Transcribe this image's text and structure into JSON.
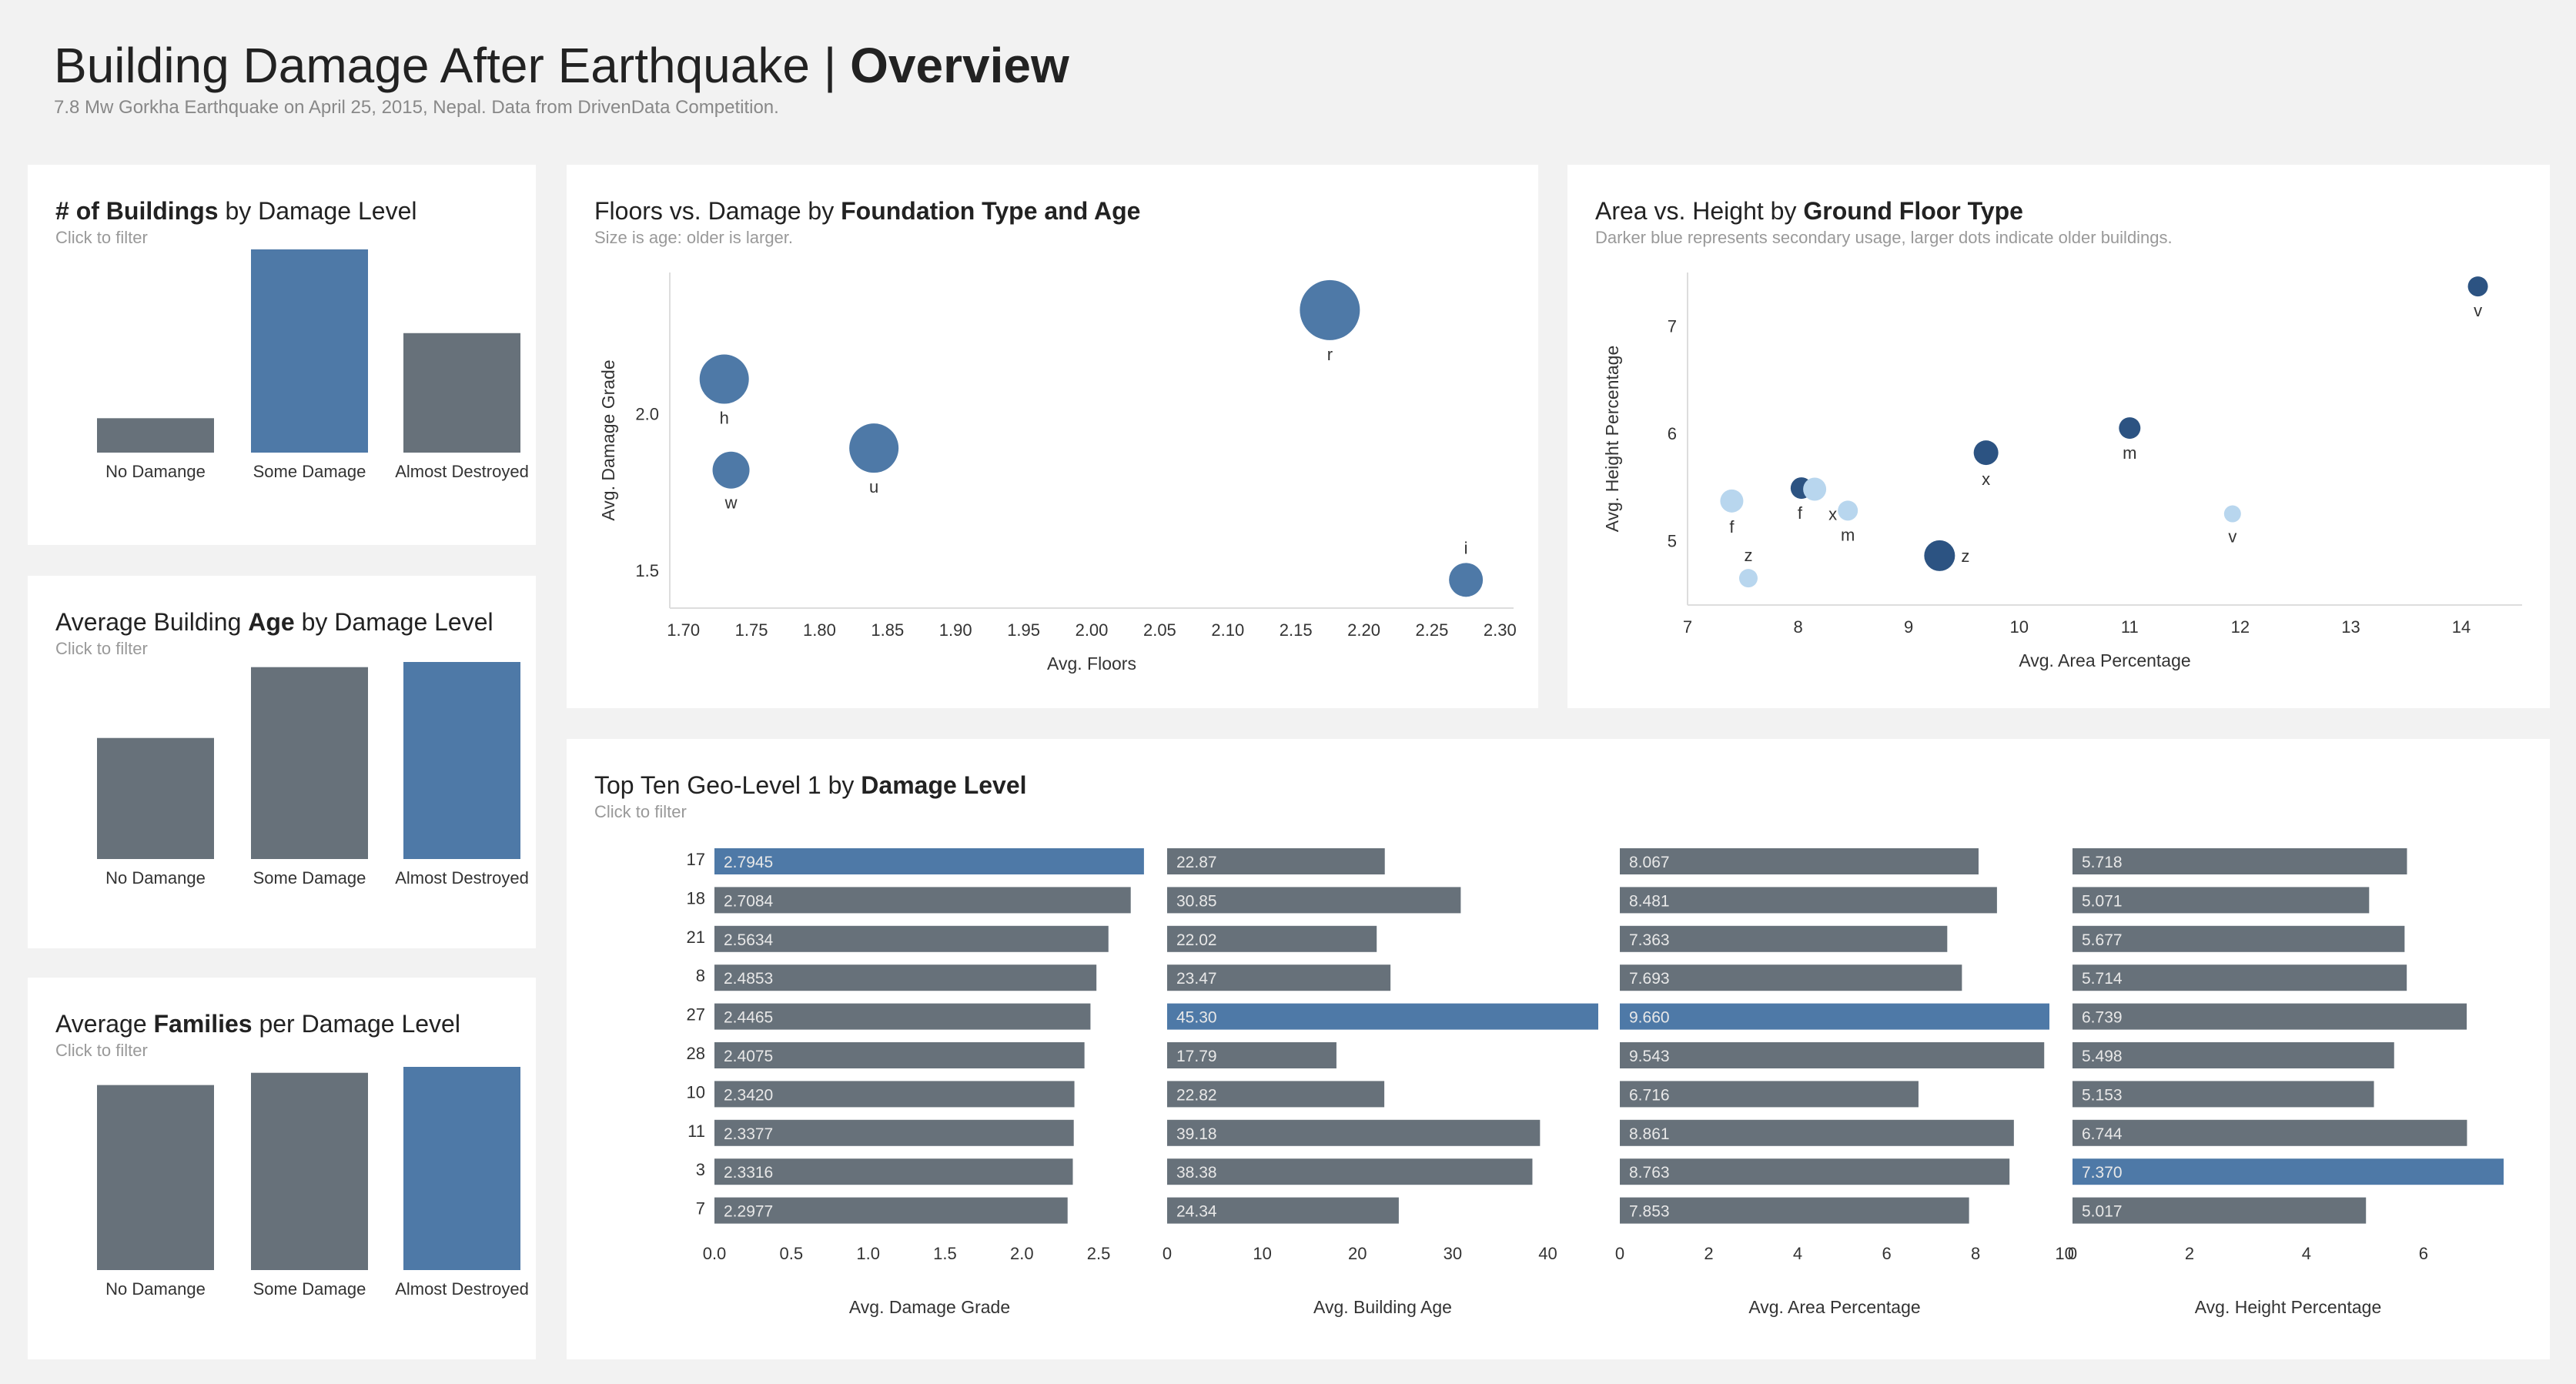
{
  "header": {
    "title_pre": "Building Damage After Earthquake | ",
    "title_bold": "Overview",
    "subtitle": "7.8 Mw Gorkha Earthquake on April 25, 2015, Nepal. Data from DrivenData Competition."
  },
  "colors": {
    "blue": "#4e79a7",
    "gray": "#67717a",
    "dark_blue": "#2c5382",
    "light_blue": "#b8d6ee",
    "axis": "#dddddd"
  },
  "panels": {
    "buildings": {
      "title_bold": "# of Buildings",
      "title_rest": " by Damage Level",
      "sub": "Click to filter"
    },
    "age": {
      "title_pre": "Average Building ",
      "title_bold": "Age",
      "title_rest": " by Damage Level",
      "sub": "Click to filter"
    },
    "families": {
      "title_pre": "Average ",
      "title_bold": "Families",
      "title_rest": " per Damage Level",
      "sub": "Click to filter"
    },
    "floors": {
      "title_pre": "Floors vs. Damage by ",
      "title_bold": "Foundation Type and Age",
      "sub": "Size is age: older is larger."
    },
    "area": {
      "title_pre": "Area vs. Height by ",
      "title_bold": "Ground Floor Type",
      "sub": "Darker blue represents secondary usage, larger dots indicate older buildings."
    },
    "geo": {
      "title_pre": "Top Ten Geo-Level 1 by ",
      "title_bold": "Damage Level",
      "sub": "Click to filter"
    }
  },
  "chart_data": [
    {
      "id": "buildings",
      "type": "bar",
      "categories": [
        "No Damange",
        "Some Damage",
        "Almost Destroyed"
      ],
      "values": [
        25100,
        148300,
        87200
      ],
      "highlight": 1
    },
    {
      "id": "age",
      "type": "bar",
      "categories": [
        "No Damange",
        "Some Damage",
        "Almost Destroyed"
      ],
      "values": [
        18.8,
        29.8,
        30.6
      ],
      "highlight": 2
    },
    {
      "id": "families",
      "type": "bar",
      "categories": [
        "No Damange",
        "Some Damage",
        "Almost Destroyed"
      ],
      "values": [
        0.936,
        0.998,
        1.028
      ],
      "highlight": 2
    },
    {
      "id": "floors",
      "type": "scatter",
      "xlabel": "Avg. Floors",
      "ylabel": "Avg. Damage Grade",
      "xlim": [
        1.69,
        2.31
      ],
      "ylim": [
        1.38,
        2.45
      ],
      "xticks": [
        "1.70",
        "1.75",
        "1.80",
        "1.85",
        "1.90",
        "1.95",
        "2.00",
        "2.05",
        "2.10",
        "2.15",
        "2.20",
        "2.25",
        "2.30"
      ],
      "yticks": [
        "1.5",
        "2.0"
      ],
      "points": [
        {
          "label": "h",
          "x": 1.73,
          "y": 2.11,
          "size": 32
        },
        {
          "label": "w",
          "x": 1.735,
          "y": 1.82,
          "size": 24
        },
        {
          "label": "u",
          "x": 1.84,
          "y": 1.89,
          "size": 32
        },
        {
          "label": "r",
          "x": 2.175,
          "y": 2.33,
          "size": 39
        },
        {
          "label": "i",
          "x": 2.275,
          "y": 1.47,
          "size": 22
        }
      ]
    },
    {
      "id": "area",
      "type": "scatter",
      "xlabel": "Avg. Area Percentage",
      "ylabel": "Avg. Height Percentage",
      "xlim": [
        7,
        14.55
      ],
      "ylim": [
        4.4,
        7.5
      ],
      "xticks": [
        "7",
        "8",
        "9",
        "10",
        "11",
        "12",
        "13",
        "14"
      ],
      "yticks": [
        "5",
        "6",
        "7"
      ],
      "points": [
        {
          "label": "v",
          "x": 14.15,
          "y": 7.37,
          "dark": true,
          "size": 13
        },
        {
          "label": "m",
          "x": 11.0,
          "y": 6.05,
          "dark": true,
          "size": 14
        },
        {
          "label": "x",
          "x": 9.7,
          "y": 5.82,
          "dark": true,
          "size": 16
        },
        {
          "label": "f",
          "x": 8.03,
          "y": 5.49,
          "dark": true,
          "size": 14
        },
        {
          "label": "z",
          "x": 9.28,
          "y": 4.86,
          "dark": true,
          "size": 20
        },
        {
          "label": "x",
          "x": 8.15,
          "y": 5.48,
          "dark": false,
          "size": 15
        },
        {
          "label": "f",
          "x": 7.4,
          "y": 5.37,
          "dark": false,
          "size": 15
        },
        {
          "label": "m",
          "x": 8.45,
          "y": 5.28,
          "dark": false,
          "size": 13
        },
        {
          "label": "v",
          "x": 11.93,
          "y": 5.25,
          "dark": false,
          "size": 11
        },
        {
          "label": "z",
          "x": 7.55,
          "y": 4.65,
          "dark": false,
          "size": 12
        }
      ]
    },
    {
      "id": "geo",
      "type": "bar",
      "orientation": "horizontal",
      "categories": [
        "17",
        "18",
        "21",
        "8",
        "27",
        "28",
        "10",
        "11",
        "3",
        "7"
      ],
      "series": [
        {
          "name": "Avg. Damage Grade",
          "values": [
            "2.7945",
            "2.7084",
            "2.5634",
            "2.4853",
            "2.4465",
            "2.4075",
            "2.3420",
            "2.3377",
            "2.3316",
            "2.2977"
          ],
          "max": 2.8,
          "ticks": [
            "0.0",
            "0.5",
            "1.0",
            "1.5",
            "2.0",
            "2.5"
          ],
          "highlight": 0
        },
        {
          "name": "Avg. Building Age",
          "values": [
            "22.87",
            "30.85",
            "22.02",
            "23.47",
            "45.30",
            "17.79",
            "22.82",
            "39.18",
            "38.38",
            "24.34"
          ],
          "max": 45.3,
          "ticks": [
            "0",
            "10",
            "20",
            "30",
            "40"
          ],
          "highlight": 4
        },
        {
          "name": "Avg. Area Percentage",
          "values": [
            "8.067",
            "8.481",
            "7.363",
            "7.693",
            "9.660",
            "9.543",
            "6.716",
            "8.861",
            "8.763",
            "7.853"
          ],
          "max": 9.66,
          "ticks": [
            "0",
            "2",
            "4",
            "6",
            "8",
            "10"
          ],
          "highlight": 4
        },
        {
          "name": "Avg. Height Percentage",
          "values": [
            "5.718",
            "5.071",
            "5.677",
            "5.714",
            "6.739",
            "5.498",
            "5.153",
            "6.744",
            "7.370",
            "5.017"
          ],
          "max": 7.37,
          "ticks": [
            "0",
            "2",
            "4",
            "6"
          ],
          "highlight": 8
        }
      ]
    }
  ]
}
